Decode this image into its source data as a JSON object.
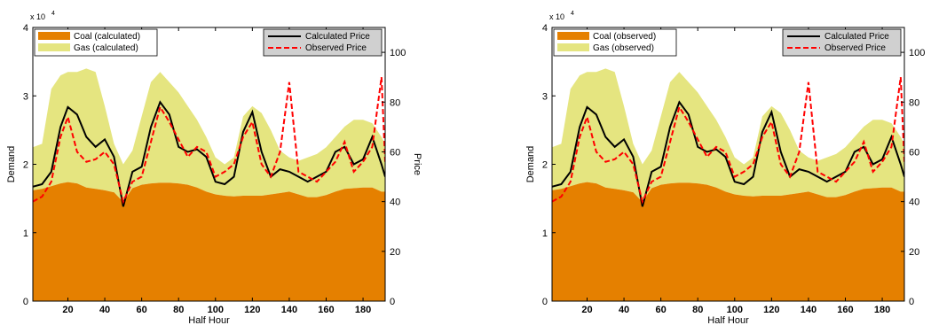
{
  "chart_data": [
    {
      "type": "area",
      "xlabel": "Half Hour",
      "ylabel": "Demand",
      "y2label": "Price",
      "exponent_label": "x 10",
      "exponent_power": "4",
      "xlim": [
        1,
        192
      ],
      "ylim": [
        0,
        40000
      ],
      "y2lim": [
        0,
        110
      ],
      "xticks": [
        20,
        40,
        60,
        80,
        100,
        120,
        140,
        160,
        180
      ],
      "yticks": [
        0,
        1,
        2,
        3,
        4
      ],
      "y2ticks": [
        0,
        20,
        40,
        60,
        80,
        100
      ],
      "legend_areas": [
        {
          "name": "Coal (calculated)",
          "color": "#e58000"
        },
        {
          "name": "Gas (calculated)",
          "color": "#e5e580"
        }
      ],
      "legend_lines": [
        {
          "name": "Calculated Price",
          "color": "#000000",
          "dash": "solid"
        },
        {
          "name": "Observed Price",
          "color": "#ff0000",
          "dash": "dashed"
        }
      ],
      "x": [
        1,
        6,
        11,
        16,
        20,
        25,
        30,
        35,
        40,
        45,
        50,
        55,
        60,
        65,
        70,
        75,
        80,
        85,
        90,
        95,
        100,
        105,
        110,
        115,
        120,
        125,
        130,
        135,
        140,
        145,
        150,
        155,
        160,
        165,
        170,
        175,
        180,
        185,
        190,
        192
      ],
      "coal": [
        16200,
        16400,
        16800,
        17200,
        17400,
        17200,
        16600,
        16400,
        16200,
        15900,
        14500,
        16500,
        17000,
        17200,
        17300,
        17300,
        17200,
        17000,
        16600,
        16000,
        15600,
        15400,
        15300,
        15400,
        15400,
        15400,
        15600,
        15800,
        16000,
        15600,
        15200,
        15200,
        15500,
        16000,
        16400,
        16500,
        16600,
        16600,
        16000,
        16000
      ],
      "total": [
        22500,
        23000,
        31000,
        33000,
        33500,
        33500,
        34000,
        33500,
        28500,
        23000,
        20000,
        22000,
        27000,
        32000,
        33500,
        32000,
        30500,
        28500,
        26500,
        24000,
        21000,
        20000,
        21000,
        27000,
        28500,
        27500,
        25000,
        22000,
        21000,
        20500,
        21000,
        21500,
        22500,
        24000,
        25500,
        26500,
        26500,
        26000,
        24000,
        23000
      ],
      "calc_price": [
        46,
        47,
        52,
        70,
        78,
        75,
        66,
        62,
        65,
        58,
        38,
        52,
        54,
        70,
        80,
        75,
        62,
        60,
        61,
        58,
        48,
        47,
        50,
        68,
        76,
        60,
        50,
        53,
        52,
        50,
        48,
        50,
        52,
        60,
        62,
        55,
        57,
        66,
        55,
        50
      ],
      "obs_price": [
        40,
        42,
        48,
        66,
        74,
        60,
        56,
        57,
        60,
        55,
        40,
        48,
        50,
        64,
        78,
        72,
        65,
        58,
        62,
        60,
        50,
        52,
        55,
        66,
        72,
        55,
        50,
        60,
        88,
        52,
        50,
        48,
        52,
        56,
        64,
        52,
        56,
        62,
        90,
        56
      ]
    },
    {
      "type": "area",
      "xlabel": "Half Hour",
      "ylabel": "Demand",
      "y2label": "Price",
      "exponent_label": "x 10",
      "exponent_power": "4",
      "xlim": [
        1,
        192
      ],
      "ylim": [
        0,
        40000
      ],
      "y2lim": [
        0,
        110
      ],
      "xticks": [
        20,
        40,
        60,
        80,
        100,
        120,
        140,
        160,
        180
      ],
      "yticks": [
        0,
        1,
        2,
        3,
        4
      ],
      "y2ticks": [
        0,
        20,
        40,
        60,
        80,
        100
      ],
      "legend_areas": [
        {
          "name": "Coal (observed)",
          "color": "#e58000"
        },
        {
          "name": "Gas (observed)",
          "color": "#e5e580"
        }
      ],
      "legend_lines": [
        {
          "name": "Calculated Price",
          "color": "#000000",
          "dash": "solid"
        },
        {
          "name": "Observed Price",
          "color": "#ff0000",
          "dash": "dashed"
        }
      ],
      "x": [
        1,
        6,
        11,
        16,
        20,
        25,
        30,
        35,
        40,
        45,
        50,
        55,
        60,
        65,
        70,
        75,
        80,
        85,
        90,
        95,
        100,
        105,
        110,
        115,
        120,
        125,
        130,
        135,
        140,
        145,
        150,
        155,
        160,
        165,
        170,
        175,
        180,
        185,
        190,
        192
      ],
      "coal": [
        16200,
        16400,
        16800,
        17200,
        17400,
        17200,
        16600,
        16400,
        16200,
        15900,
        14500,
        16500,
        17000,
        17200,
        17300,
        17300,
        17200,
        17000,
        16600,
        16000,
        15600,
        15400,
        15300,
        15400,
        15400,
        15400,
        15600,
        15800,
        16000,
        15600,
        15200,
        15200,
        15500,
        16000,
        16400,
        16500,
        16600,
        16600,
        16000,
        16000
      ],
      "total": [
        22500,
        23000,
        31000,
        33000,
        33500,
        33500,
        34000,
        33500,
        28500,
        23000,
        20000,
        22000,
        27000,
        32000,
        33500,
        32000,
        30500,
        28500,
        26500,
        24000,
        21000,
        20000,
        21000,
        27000,
        28500,
        27500,
        25000,
        22000,
        21000,
        20500,
        21000,
        21500,
        22500,
        24000,
        25500,
        26500,
        26500,
        26000,
        24000,
        23000
      ],
      "calc_price": [
        46,
        47,
        52,
        70,
        78,
        75,
        66,
        62,
        65,
        58,
        38,
        52,
        54,
        70,
        80,
        75,
        62,
        60,
        61,
        58,
        48,
        47,
        50,
        68,
        76,
        60,
        50,
        53,
        52,
        50,
        48,
        50,
        52,
        60,
        62,
        55,
        57,
        66,
        55,
        50
      ],
      "obs_price": [
        40,
        42,
        48,
        66,
        74,
        60,
        56,
        57,
        60,
        55,
        40,
        48,
        50,
        64,
        78,
        72,
        65,
        58,
        62,
        60,
        50,
        52,
        55,
        66,
        72,
        55,
        50,
        60,
        88,
        52,
        50,
        48,
        52,
        56,
        64,
        52,
        56,
        62,
        90,
        56
      ]
    }
  ]
}
